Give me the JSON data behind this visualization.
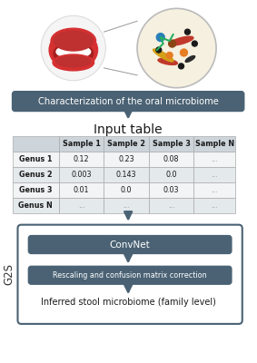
{
  "bg_color": "#ffffff",
  "header_box_color": "#4a6274",
  "header_box_text_color": "#ffffff",
  "header_text": "Characterization of the oral microbiome",
  "input_table_title": "Input table",
  "table_header_row": [
    "",
    "Sample 1",
    "Sample 2",
    "Sample 3",
    "Sample N"
  ],
  "table_rows": [
    [
      "Genus 1",
      "0.12",
      "0.23",
      "0.08",
      "..."
    ],
    [
      "Genus 2",
      "0.003",
      "0.143",
      "0.0",
      "..."
    ],
    [
      "Genus 3",
      "0.01",
      "0.0",
      "0.03",
      "..."
    ],
    [
      "Genus N",
      "...",
      "...",
      "...",
      "..."
    ]
  ],
  "table_header_bg": "#cdd5db",
  "table_row_bg_light": "#f2f4f5",
  "table_row_bg_mid": "#e4e9ec",
  "table_border_color": "#aaaaaa",
  "g2s_box_border": "#4a6274",
  "g2s_label": "G2S",
  "convnet_box_color": "#4a6274",
  "convnet_text": "ConvNet",
  "rescaling_box_color": "#4a6274",
  "rescaling_text": "Rescaling and confusion matrix correction",
  "inferred_text": "Inferred stool microbiome (family level)",
  "arrow_color": "#4a6274",
  "mouth_color": "#d63031",
  "mouth_inner": "#a52020",
  "mouth_teeth": "#ffffff",
  "micro_circle_bg": "#f5f0e0",
  "micro_circle_border": "#bbbbbb",
  "bacteria_red": "#c0392b",
  "bacteria_yellow": "#d4a017",
  "bacteria_dark": "#2c2c2c",
  "bacteria_green_line": "#27ae60",
  "dot_blue": "#2980b9",
  "dot_brown": "#8B4513",
  "dot_orange": "#e67e22",
  "dot_dark": "#1a1a1a",
  "dot_green_person": "#27ae60"
}
